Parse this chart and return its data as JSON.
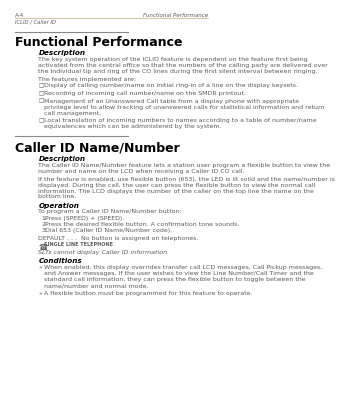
{
  "bg_color": "#ffffff",
  "header_left": "A-4",
  "header_right": "Functional Performance",
  "header_sub": "ICLID / Caller ID",
  "header_line_color": "#c8a882",
  "section1_title": "Functional Performance",
  "desc1_heading": "Description",
  "desc1_body": "The key system operation of the ICLID feature is dependent on the feature first being\nactivated from the central office so that the numbers of the calling party are delivered over\nthe individual tip and ring of the CO lines during the first silent interval between ringing.",
  "features_intro": "The features implemented are:",
  "features": [
    "Display of calling number/name on initial ring-in of a line on the display keysets.",
    "Recording of incoming call number/name on the SMDR printout.",
    "Management of an Unanswered Call table from a display phone with appropriate\nprivilege level to allow tracking of unanswered calls for statistical information and return\ncall management.",
    "Local translation of incoming numbers to names according to a table of number/name\nequivalences which can be administered by the system."
  ],
  "section2_title": "Caller ID Name/Number",
  "desc2_heading": "Description",
  "desc2_body1": "The Caller ID Name/Number feature lets a station user program a flexible button to view the\nnumber and name on the LCD when receiving a Caller ID CO call.",
  "desc2_body2": "If the feature is enabled, use flexible button (653), the LED is lit solid and the name/number is\ndisplayed. During the call, the user can press the flexible button to view the normal call\ninformation. The LCD displays the number of the caller on the top line the name on the\nbottom line.",
  "op_heading": "Operation",
  "op_intro": "To program a Caller ID Name/Number button:",
  "op_steps": [
    "Press (SPEED) + (SPEED).",
    "Press the desired flexible button. A confirmation tone sounds.",
    "Dial 653 (Caller ID Name/Number code)."
  ],
  "default_text": "DEFAULT . . .  No button is assigned on telephones.",
  "slt_label": "SINGLE LINE TELEPHONE",
  "slt_note": "SLTs cannot display Caller ID information.",
  "cond_heading": "Conditions",
  "conditions": [
    "When enabled, this display overrides transfer call LCD messages, Call Pickup messages,\nand Answer messages. If the user wishes to view the Line Number/Call Timer and the\nstandard call information, they can press the flexible button to toggle between the\nname/number and normal mode.",
    "A flexible button must be programmed for this feature to operate."
  ],
  "text_color": "#5a5a5a",
  "heading_color": "#000000",
  "title_color": "#000000"
}
